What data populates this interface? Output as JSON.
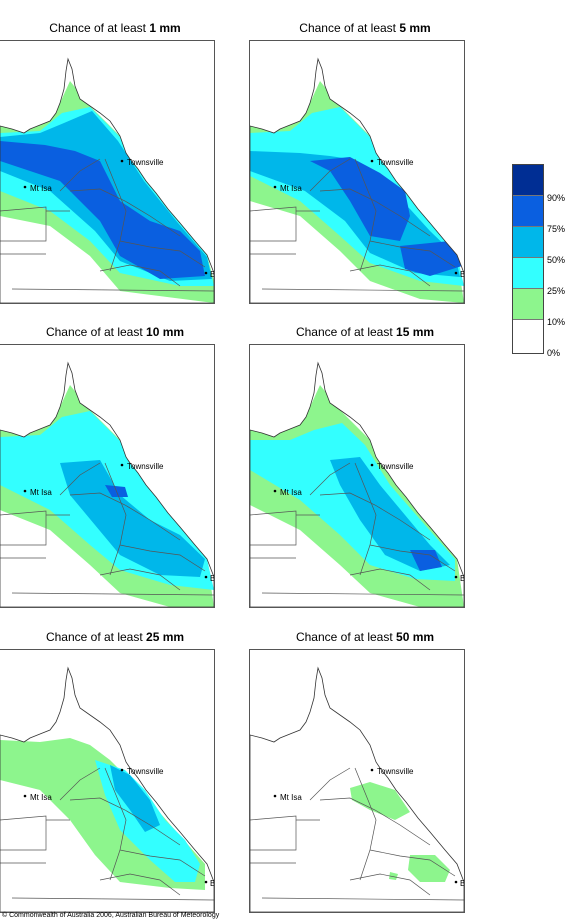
{
  "panels": [
    {
      "title_prefix": "Chance of at least ",
      "title_value": "1 mm",
      "level_pct": 1
    },
    {
      "title_prefix": "Chance of at least ",
      "title_value": "5 mm",
      "level_pct": 2
    },
    {
      "title_prefix": "Chance of at least ",
      "title_value": "10 mm",
      "level_pct": 3
    },
    {
      "title_prefix": "Chance of at least ",
      "title_value": "15 mm",
      "level_pct": 4
    },
    {
      "title_prefix": "Chance of at least ",
      "title_value": "25 mm",
      "level_pct": 5
    },
    {
      "title_prefix": "Chance of at least ",
      "title_value": "50 mm",
      "level_pct": 6
    }
  ],
  "places": {
    "townsville": "Townsville",
    "mt_isa": "Mt Isa",
    "brisbane": "BRIS"
  },
  "legend": {
    "labels": [
      "90%",
      "75%",
      "50%",
      "25%",
      "10%",
      "0%"
    ],
    "colors": [
      "#002e94",
      "#0a5fe0",
      "#00b7ea",
      "#33ffff",
      "#8df58d",
      "#ffffff"
    ]
  },
  "copyright": "© Commonwealth of Australia 2006, Australian Bureau of Meteorology"
}
